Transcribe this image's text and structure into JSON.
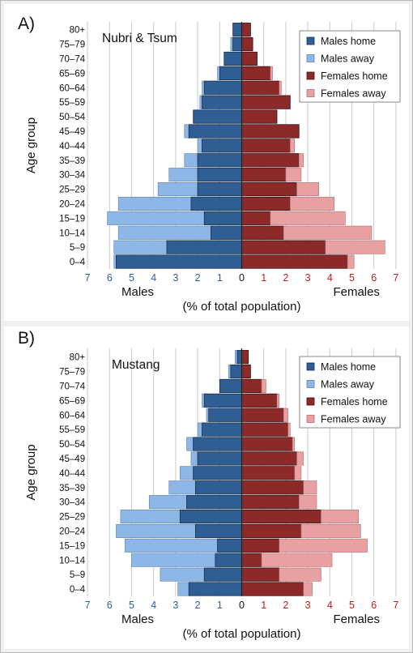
{
  "colors": {
    "males_home": "#2f5e95",
    "males_away": "#8db7e6",
    "females_home": "#8c2a2a",
    "females_away": "#e8a0a2",
    "male_tick": "#2f5e95",
    "female_tick": "#c21d1d",
    "grid": "#cccccc"
  },
  "chart_data": [
    {
      "type": "bar",
      "panel_label": "A)",
      "title": "Nubri & Tsum",
      "ylabel": "Age group",
      "xlabel": "(% of total population)",
      "left_label": "Males",
      "right_label": "Females",
      "xlim": [
        -7,
        7
      ],
      "x_ticks": [
        "7",
        "6",
        "5",
        "4",
        "3",
        "2",
        "1",
        "0",
        "1",
        "2",
        "3",
        "4",
        "5",
        "6",
        "7"
      ],
      "grid": true,
      "legend_placement": "top-right",
      "categories": [
        "0–4",
        "5–9",
        "10–14",
        "15–19",
        "20–24",
        "25–29",
        "30–34",
        "35–39",
        "40–44",
        "45–49",
        "50–54",
        "55–59",
        "60–64",
        "65–69",
        "70–74",
        "75–79",
        "80+"
      ],
      "series": [
        {
          "name": "Males home",
          "values": [
            5.7,
            3.4,
            1.4,
            1.7,
            2.3,
            2.0,
            2.0,
            2.0,
            1.8,
            2.4,
            2.2,
            1.8,
            1.7,
            1.0,
            0.8,
            0.4,
            0.4
          ]
        },
        {
          "name": "Males away",
          "values": [
            0.1,
            2.4,
            4.2,
            4.4,
            3.3,
            1.8,
            1.3,
            0.6,
            0.2,
            0.2,
            0.0,
            0.1,
            0.1,
            0.1,
            0.0,
            0.1,
            0.0
          ]
        },
        {
          "name": "Females home",
          "values": [
            4.8,
            3.8,
            1.9,
            1.3,
            2.2,
            2.5,
            2.0,
            2.6,
            2.2,
            2.6,
            1.6,
            2.2,
            1.7,
            1.3,
            0.7,
            0.5,
            0.4
          ]
        },
        {
          "name": "Females away",
          "values": [
            0.3,
            2.7,
            4.0,
            3.4,
            2.0,
            1.0,
            0.7,
            0.2,
            0.2,
            0.0,
            0.0,
            0.0,
            0.1,
            0.1,
            0.0,
            0.0,
            0.0
          ]
        }
      ]
    },
    {
      "type": "bar",
      "panel_label": "B)",
      "title": "Mustang",
      "ylabel": "Age group",
      "xlabel": "(% of total population)",
      "left_label": "Males",
      "right_label": "Females",
      "xlim": [
        -7,
        7
      ],
      "x_ticks": [
        "7",
        "6",
        "5",
        "4",
        "3",
        "2",
        "1",
        "0",
        "1",
        "2",
        "3",
        "4",
        "5",
        "6",
        "7"
      ],
      "grid": true,
      "legend_placement": "top-right",
      "categories": [
        "0–4",
        "5–9",
        "10–14",
        "15–19",
        "20–24",
        "25–29",
        "30–34",
        "35–39",
        "40–44",
        "45–49",
        "50–54",
        "55–59",
        "60–64",
        "65–69",
        "70–74",
        "75–79",
        "80+"
      ],
      "series": [
        {
          "name": "Males home",
          "values": [
            2.4,
            1.7,
            1.2,
            1.1,
            2.1,
            2.8,
            2.5,
            2.1,
            2.2,
            2.0,
            2.2,
            1.8,
            1.5,
            1.7,
            1.0,
            0.5,
            0.2
          ]
        },
        {
          "name": "Males away",
          "values": [
            0.5,
            2.0,
            3.8,
            4.2,
            3.6,
            2.7,
            1.7,
            1.2,
            0.6,
            0.3,
            0.3,
            0.2,
            0.1,
            0.1,
            0.0,
            0.1,
            0.1
          ]
        },
        {
          "name": "Females home",
          "values": [
            2.8,
            1.7,
            0.9,
            1.7,
            2.7,
            3.6,
            2.6,
            2.8,
            2.4,
            2.5,
            2.3,
            2.1,
            1.9,
            1.6,
            0.9,
            0.4,
            0.3
          ]
        },
        {
          "name": "Females away",
          "values": [
            0.4,
            1.9,
            3.2,
            4.0,
            2.7,
            1.7,
            0.8,
            0.6,
            0.3,
            0.3,
            0.1,
            0.1,
            0.2,
            0.1,
            0.2,
            0.0,
            0.0
          ]
        }
      ]
    }
  ]
}
